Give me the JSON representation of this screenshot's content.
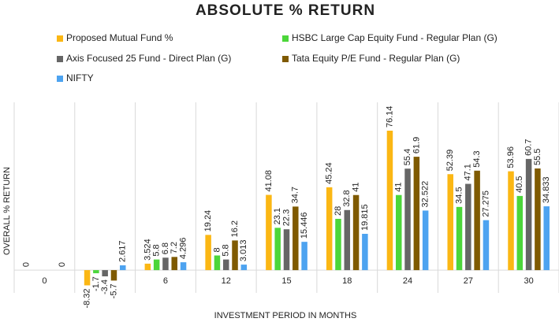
{
  "chart_data": {
    "type": "bar",
    "title": "ABSOLUTE % RETURN",
    "x_label": "INVESTMENT PERIOD IN MONTHS",
    "y_label": "OVERALL % RETURN",
    "categories": [
      "0",
      null,
      "6",
      "12",
      "15",
      "18",
      "24",
      "27",
      "30"
    ],
    "ylim": [
      -15,
      80
    ],
    "series": [
      {
        "name": "Proposed Mutual Fund %",
        "color": "#fbb714",
        "values": [
          0,
          -8.32,
          3.524,
          19.24,
          41.08,
          45.24,
          76.14,
          52.39,
          53.96
        ]
      },
      {
        "name": "HSBC Large Cap Equity Fund - Regular Plan (G)",
        "color": "#4cd63a",
        "values": [
          null,
          -1.7,
          5.8,
          8,
          23.1,
          28,
          41,
          34.5,
          40.5
        ]
      },
      {
        "name": "Axis Focused 25 Fund - Direct Plan (G)",
        "color": "#666666",
        "values": [
          null,
          -3.4,
          6.8,
          5.8,
          22.3,
          32.8,
          55.4,
          47.1,
          60.7
        ]
      },
      {
        "name": "Tata Equity P/E Fund - Regular Plan (G)",
        "color": "#7f5a00",
        "values": [
          null,
          -5.7,
          7.2,
          16.2,
          34.7,
          41,
          61.9,
          54.3,
          55.5
        ]
      },
      {
        "name": "NIFTY",
        "color": "#4da3f0",
        "values": [
          0,
          2.617,
          4.296,
          3.013,
          15.446,
          19.815,
          32.522,
          27.275,
          34.833
        ]
      }
    ]
  }
}
